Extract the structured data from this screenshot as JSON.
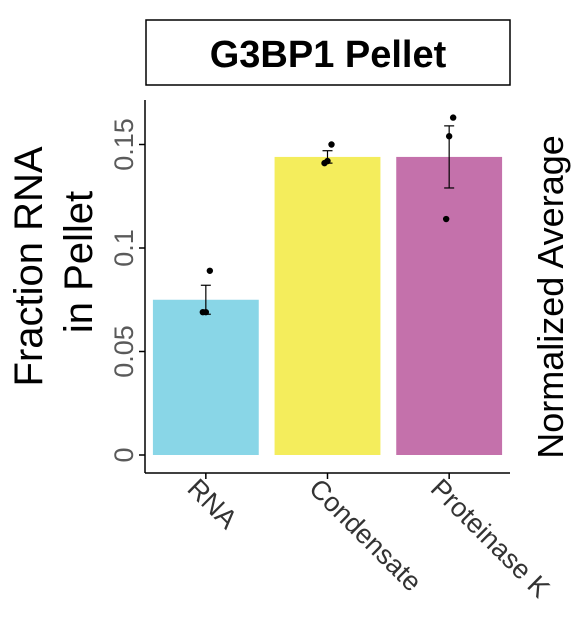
{
  "chart_data": {
    "type": "bar",
    "title": "G3BP1 Pellet",
    "ylabel": "Fraction RNA\nin Pellet",
    "right_label": "Normalized Average",
    "categories": [
      "RNA",
      "Condensate",
      "Proteinase K"
    ],
    "values": [
      0.075,
      0.144,
      0.144
    ],
    "error": [
      [
        0.068,
        0.082
      ],
      [
        0.141,
        0.147
      ],
      [
        0.129,
        0.159
      ]
    ],
    "points": [
      [
        0.069,
        0.069,
        0.089
      ],
      [
        0.141,
        0.142,
        0.15
      ],
      [
        0.114,
        0.154,
        0.163
      ]
    ],
    "colors": [
      "#89d6e7",
      "#f4ed5c",
      "#c471ab"
    ],
    "ylim": [
      0,
      0.16
    ],
    "yticks": [
      0,
      0.05,
      0.1,
      0.15
    ],
    "ytick_labels": [
      "0",
      "0.05",
      "0.1",
      "0.15"
    ],
    "grid": false,
    "legend": "none"
  }
}
